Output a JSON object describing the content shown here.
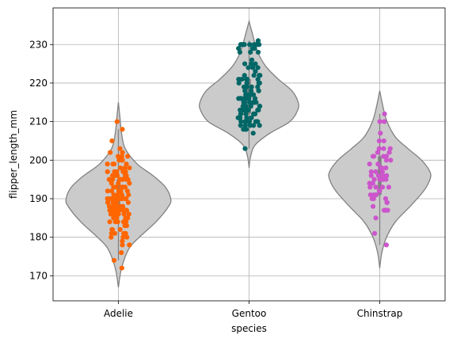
{
  "chart_data": {
    "type": "violin",
    "xlabel": "species",
    "ylabel": "flipper_length_mm",
    "ylim": [
      163.5,
      239.5
    ],
    "yticks": [
      170,
      180,
      190,
      200,
      210,
      220,
      230
    ],
    "grid": true,
    "categories": [
      "Adelie",
      "Gentoo",
      "Chinstrap"
    ],
    "colors": {
      "Adelie": "#ff6600",
      "Gentoo": "#006666",
      "Chinstrap": "#cc55cc",
      "violin_fill": "#cbcbcb",
      "violin_edge": "#808080"
    },
    "series": [
      {
        "name": "Adelie",
        "box": {
          "whisker_low": 174,
          "q1": 186,
          "median": 190,
          "q3": 195,
          "whisker_high": 208
        },
        "violin_profile": [
          [
            167,
            0.0
          ],
          [
            172,
            0.06
          ],
          [
            177,
            0.2
          ],
          [
            180,
            0.4
          ],
          [
            184,
            0.72
          ],
          [
            188,
            0.96
          ],
          [
            190,
            1.0
          ],
          [
            193,
            0.9
          ],
          [
            196,
            0.66
          ],
          [
            199,
            0.36
          ],
          [
            203,
            0.13
          ],
          [
            207,
            0.06
          ],
          [
            211,
            0.03
          ],
          [
            215,
            0.0
          ]
        ],
        "points": [
          172,
          174,
          176,
          178,
          178,
          179,
          180,
          180,
          180,
          181,
          181,
          181,
          181,
          181,
          182,
          182,
          182,
          183,
          183,
          184,
          184,
          184,
          184,
          184,
          185,
          185,
          185,
          185,
          185,
          185,
          185,
          186,
          186,
          186,
          186,
          186,
          186,
          186,
          186,
          187,
          187,
          187,
          187,
          187,
          187,
          187,
          187,
          187,
          188,
          188,
          188,
          188,
          188,
          188,
          189,
          189,
          189,
          189,
          189,
          189,
          189,
          190,
          190,
          190,
          190,
          190,
          190,
          190,
          190,
          190,
          190,
          190,
          190,
          190,
          190,
          191,
          191,
          191,
          191,
          191,
          191,
          191,
          192,
          192,
          192,
          192,
          192,
          193,
          193,
          193,
          193,
          193,
          193,
          193,
          194,
          194,
          194,
          195,
          195,
          195,
          195,
          195,
          195,
          195,
          195,
          195,
          196,
          196,
          196,
          196,
          196,
          196,
          196,
          197,
          197,
          197,
          197,
          197,
          198,
          198,
          198,
          199,
          199,
          199,
          199,
          200,
          200,
          200,
          200,
          201,
          201,
          201,
          202,
          202,
          203,
          205,
          208,
          210
        ]
      },
      {
        "name": "Gentoo",
        "box": {
          "whisker_low": 203,
          "q1": 212,
          "median": 216,
          "q3": 221,
          "whisker_high": 231
        },
        "violin_profile": [
          [
            198,
            0.0
          ],
          [
            201,
            0.03
          ],
          [
            204,
            0.12
          ],
          [
            207,
            0.4
          ],
          [
            210,
            0.78
          ],
          [
            213,
            0.93
          ],
          [
            215,
            0.94
          ],
          [
            218,
            0.82
          ],
          [
            221,
            0.56
          ],
          [
            224,
            0.34
          ],
          [
            227,
            0.2
          ],
          [
            230,
            0.12
          ],
          [
            233,
            0.06
          ],
          [
            236,
            0.0
          ]
        ],
        "points": [
          203,
          207,
          208,
          208,
          208,
          209,
          209,
          209,
          209,
          209,
          210,
          210,
          210,
          210,
          210,
          210,
          210,
          210,
          210,
          211,
          211,
          211,
          211,
          212,
          212,
          212,
          212,
          212,
          212,
          212,
          213,
          213,
          213,
          213,
          213,
          213,
          214,
          214,
          214,
          214,
          214,
          214,
          215,
          215,
          215,
          215,
          215,
          215,
          215,
          215,
          215,
          215,
          216,
          216,
          216,
          216,
          216,
          216,
          216,
          216,
          217,
          217,
          217,
          217,
          217,
          217,
          218,
          218,
          218,
          218,
          219,
          219,
          219,
          219,
          220,
          220,
          220,
          220,
          220,
          221,
          221,
          221,
          221,
          221,
          222,
          222,
          222,
          222,
          223,
          224,
          224,
          224,
          225,
          225,
          225,
          226,
          228,
          228,
          228,
          229,
          229,
          229,
          230,
          230,
          230,
          230,
          230,
          230,
          230,
          230,
          230,
          231
        ]
      },
      {
        "name": "Chinstrap",
        "box": {
          "whisker_low": 178,
          "q1": 191,
          "median": 196,
          "q3": 201,
          "whisker_high": 212
        },
        "violin_profile": [
          [
            172,
            0.0
          ],
          [
            176,
            0.04
          ],
          [
            180,
            0.13
          ],
          [
            184,
            0.3
          ],
          [
            188,
            0.58
          ],
          [
            192,
            0.84
          ],
          [
            195,
            0.96
          ],
          [
            197,
            0.96
          ],
          [
            200,
            0.8
          ],
          [
            203,
            0.54
          ],
          [
            206,
            0.3
          ],
          [
            210,
            0.14
          ],
          [
            214,
            0.06
          ],
          [
            218,
            0.0
          ]
        ],
        "points": [
          178,
          181,
          185,
          187,
          187,
          187,
          187,
          188,
          189,
          189,
          190,
          190,
          190,
          191,
          191,
          191,
          192,
          192,
          193,
          193,
          193,
          193,
          194,
          194,
          195,
          195,
          195,
          195,
          195,
          196,
          196,
          196,
          196,
          197,
          197,
          197,
          198,
          198,
          198,
          199,
          199,
          200,
          200,
          201,
          201,
          201,
          201,
          202,
          202,
          203,
          203,
          203,
          205,
          205,
          207,
          210,
          210,
          212
        ]
      }
    ]
  }
}
